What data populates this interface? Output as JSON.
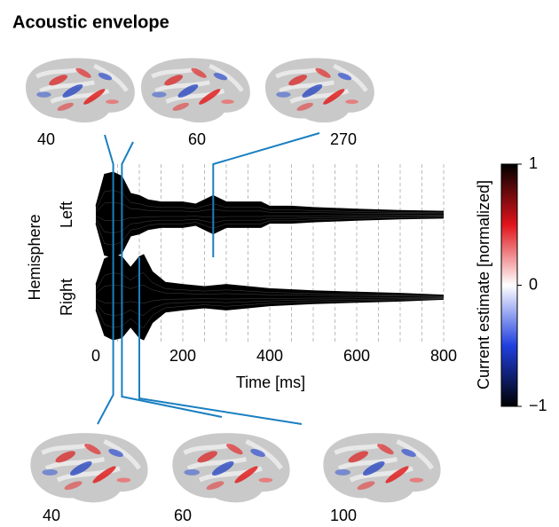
{
  "chart_data": {
    "type": "butterfly",
    "title": "Acoustic envelope",
    "xlabel": "Time [ms]",
    "ylabel": "Hemisphere",
    "xlim": [
      0,
      800
    ],
    "xticks": [
      0,
      200,
      400,
      600,
      800
    ],
    "xgrid": [
      50,
      100,
      150,
      200,
      250,
      300,
      350,
      400,
      450,
      500,
      550,
      600,
      650,
      700,
      750,
      800
    ],
    "color": "#000000",
    "series": [
      {
        "name": "Left",
        "x": [
          0,
          20,
          40,
          60,
          80,
          100,
          120,
          150,
          200,
          230,
          270,
          300,
          350,
          380,
          400,
          450,
          500,
          600,
          700,
          800
        ],
        "values": [
          0.2,
          0.95,
          1,
          0.9,
          0.5,
          0.45,
          0.35,
          0.3,
          0.3,
          0.25,
          0.45,
          0.3,
          0.3,
          0.3,
          0.2,
          0.2,
          0.17,
          0.13,
          0.1,
          0.08
        ]
      },
      {
        "name": "Right",
        "x": [
          0,
          20,
          40,
          60,
          80,
          100,
          110,
          130,
          160,
          200,
          250,
          300,
          350,
          400,
          500,
          600,
          700,
          800
        ],
        "values": [
          0.3,
          0.9,
          1,
          0.95,
          0.7,
          0.95,
          1,
          0.6,
          0.35,
          0.3,
          0.25,
          0.3,
          0.25,
          0.2,
          0.15,
          0.12,
          0.09,
          0.05
        ]
      }
    ],
    "top_latencies": [
      40,
      60,
      270
    ],
    "bottom_latencies": [
      40,
      60,
      100
    ],
    "connector_color": "#1a7fc1",
    "colorbar": {
      "label": "Current estimate [normalized]",
      "lim": [
        -1,
        1
      ],
      "ticks": [
        1,
        0,
        {
          "value": -1,
          "label": "−1"
        }
      ]
    }
  }
}
